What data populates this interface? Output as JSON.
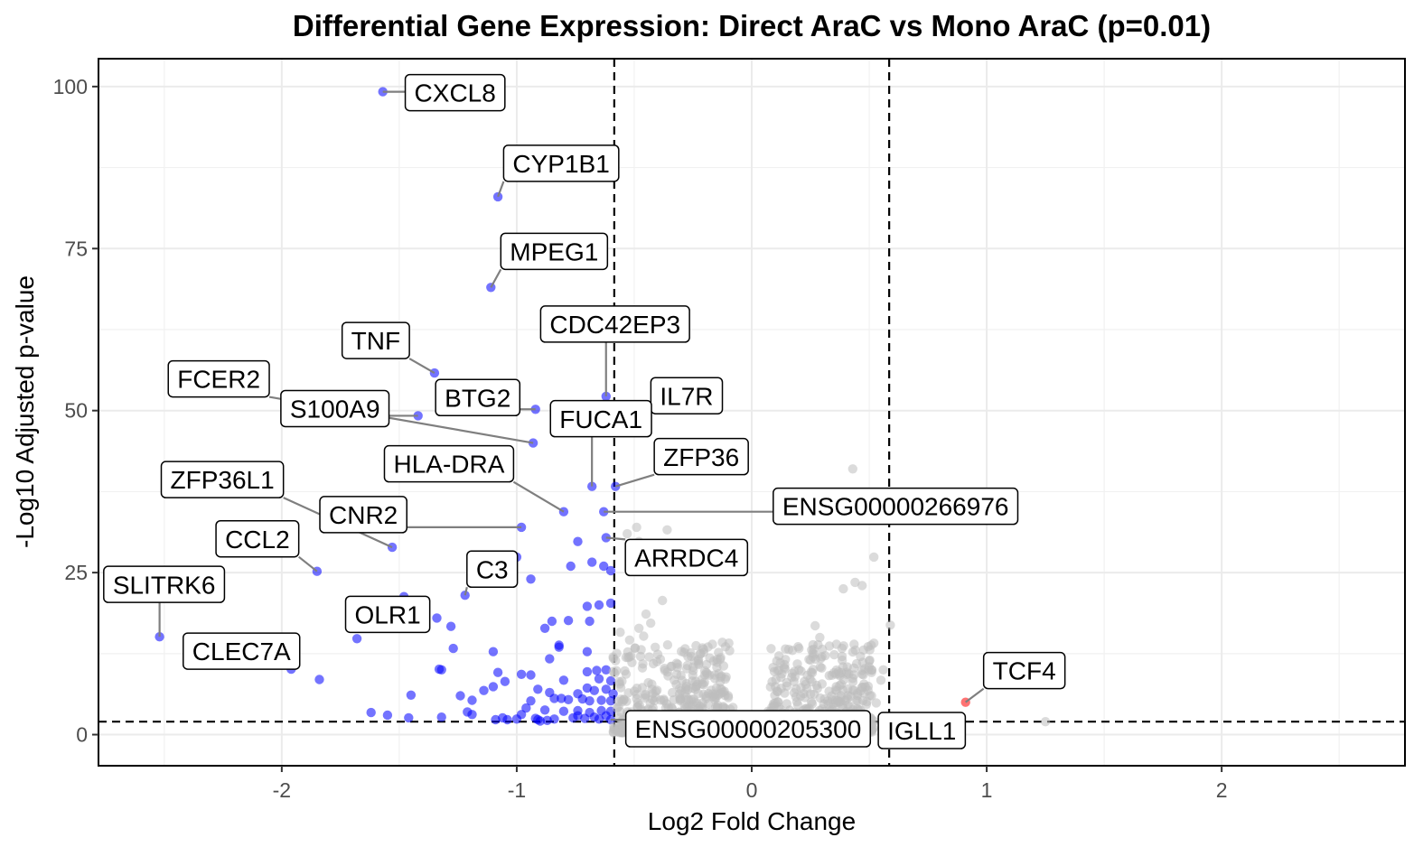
{
  "chart_data": {
    "type": "scatter",
    "title": "Differential Gene Expression: Direct AraC vs Mono AraC (p=0.01)",
    "xlabel": "Log2 Fold Change",
    "ylabel": "-Log10 Adjusted p-value",
    "xlim": [
      -2.78,
      2.78
    ],
    "ylim": [
      -4.8,
      104.3
    ],
    "x_ticks": [
      -2,
      -1,
      0,
      1,
      2
    ],
    "x_tick_labels": [
      "-2",
      "-1",
      "0",
      "1",
      "2"
    ],
    "y_ticks": [
      0,
      25,
      50,
      75,
      100
    ],
    "y_tick_labels": [
      "0",
      "25",
      "50",
      "75",
      "100"
    ],
    "grid": true,
    "legend": "none",
    "thresholds": {
      "log2fc": [
        -0.585,
        0.585
      ],
      "neg_log10_padj": 2
    },
    "colors": {
      "down": "#0000ff",
      "up": "#ff0000",
      "ns": "#bebebe"
    },
    "series": [
      {
        "name": "Down",
        "color": "#0000ff",
        "points": [
          [
            -1.57,
            99.2
          ],
          [
            -1.08,
            83.0
          ],
          [
            -1.11,
            69.0
          ],
          [
            -1.35,
            55.8
          ],
          [
            -0.62,
            52.2
          ],
          [
            -0.92,
            50.2
          ],
          [
            -0.7,
            50.9
          ],
          [
            -1.42,
            49.2
          ],
          [
            -0.93,
            45.0
          ],
          [
            -0.68,
            38.3
          ],
          [
            -0.58,
            38.3
          ],
          [
            -0.8,
            34.4
          ],
          [
            -0.63,
            34.4
          ],
          [
            -0.98,
            32.0
          ],
          [
            -1.53,
            28.9
          ],
          [
            -0.74,
            29.8
          ],
          [
            -1.0,
            27.4
          ],
          [
            -0.62,
            30.4
          ],
          [
            -0.68,
            26.6
          ],
          [
            -0.63,
            26.0
          ],
          [
            -0.6,
            25.3
          ],
          [
            -0.77,
            26.0
          ],
          [
            -1.85,
            25.2
          ],
          [
            -0.94,
            24.0
          ],
          [
            -0.85,
            17.5
          ],
          [
            -1.48,
            21.3
          ],
          [
            -1.22,
            21.5
          ],
          [
            -1.34,
            18.0
          ],
          [
            -1.28,
            16.7
          ],
          [
            -0.7,
            19.8
          ],
          [
            -0.65,
            20.0
          ],
          [
            -0.6,
            20.3
          ],
          [
            -0.78,
            17.6
          ],
          [
            -0.69,
            17.5
          ],
          [
            -0.88,
            16.4
          ],
          [
            -0.82,
            13.8
          ],
          [
            -0.82,
            13.5
          ],
          [
            -1.68,
            14.8
          ],
          [
            -2.52,
            15.1
          ],
          [
            -1.27,
            13.3
          ],
          [
            -1.1,
            12.8
          ],
          [
            -0.7,
            12.8
          ],
          [
            -0.86,
            11.7
          ],
          [
            -1.96,
            10.1
          ],
          [
            -1.33,
            10.1
          ],
          [
            -1.32,
            10.0
          ],
          [
            -1.08,
            9.6
          ],
          [
            -0.98,
            9.3
          ],
          [
            -0.94,
            9.2
          ],
          [
            -1.84,
            8.5
          ],
          [
            -1.05,
            8.2
          ],
          [
            -0.7,
            9.7
          ],
          [
            -0.66,
            9.9
          ],
          [
            -0.62,
            10.0
          ],
          [
            -0.8,
            8.4
          ],
          [
            -0.65,
            8.6
          ],
          [
            -0.6,
            8.3
          ],
          [
            -1.1,
            7.4
          ],
          [
            -1.14,
            6.8
          ],
          [
            -1.24,
            6.0
          ],
          [
            -1.19,
            5.3
          ],
          [
            -0.91,
            7.0
          ],
          [
            -0.86,
            6.5
          ],
          [
            -0.74,
            6.3
          ],
          [
            -0.7,
            7.2
          ],
          [
            -0.67,
            6.8
          ],
          [
            -0.62,
            7.0
          ],
          [
            -0.59,
            6.3
          ],
          [
            -1.45,
            6.1
          ],
          [
            -0.94,
            5.2
          ],
          [
            -0.84,
            5.6
          ],
          [
            -0.81,
            5.6
          ],
          [
            -0.78,
            5.4
          ],
          [
            -0.72,
            5.5
          ],
          [
            -0.69,
            5.2
          ],
          [
            -0.64,
            5.3
          ],
          [
            -0.6,
            5.2
          ],
          [
            -0.96,
            4.1
          ],
          [
            -0.88,
            3.8
          ],
          [
            -0.8,
            3.6
          ],
          [
            -0.74,
            3.7
          ],
          [
            -0.69,
            3.4
          ],
          [
            -0.64,
            3.7
          ],
          [
            -0.6,
            3.6
          ],
          [
            -1.62,
            3.4
          ],
          [
            -1.55,
            3.0
          ],
          [
            -1.46,
            2.6
          ],
          [
            -1.32,
            2.7
          ],
          [
            -1.21,
            3.5
          ],
          [
            -1.19,
            3.1
          ],
          [
            -1.06,
            2.6
          ],
          [
            -1.04,
            2.3
          ],
          [
            -1.09,
            2.3
          ],
          [
            -1.0,
            2.4
          ],
          [
            -0.98,
            3.1
          ],
          [
            -0.92,
            2.5
          ],
          [
            -0.91,
            2.3
          ],
          [
            -0.9,
            2.1
          ],
          [
            -0.87,
            2.2
          ],
          [
            -0.84,
            2.4
          ],
          [
            -0.76,
            2.6
          ],
          [
            -0.74,
            2.9
          ],
          [
            -0.71,
            2.5
          ],
          [
            -0.67,
            2.7
          ],
          [
            -0.65,
            2.4
          ],
          [
            -0.62,
            2.9
          ],
          [
            -0.6,
            2.3
          ]
        ]
      },
      {
        "name": "Up",
        "color": "#ff0000",
        "points": [
          [
            0.91,
            5.0
          ],
          [
            0.62,
            2.3
          ]
        ]
      },
      {
        "name": "NS",
        "color": "#bebebe",
        "points": [
          [
            0.43,
            41.0
          ],
          [
            -0.36,
            31.6
          ],
          [
            -0.49,
            32.0
          ],
          [
            -0.53,
            31.0
          ],
          [
            -0.48,
            29.8
          ],
          [
            -0.44,
            29.2
          ],
          [
            -0.47,
            28.0
          ],
          [
            0.52,
            27.4
          ],
          [
            0.44,
            23.5
          ],
          [
            0.47,
            23.0
          ],
          [
            0.39,
            22.5
          ],
          [
            -0.38,
            20.7
          ],
          [
            0.59,
            16.9
          ],
          [
            -0.56,
            15.8
          ],
          [
            -0.46,
            15.2
          ],
          [
            -0.52,
            14.6
          ],
          [
            -0.45,
            18.6
          ],
          [
            -0.43,
            17.2
          ],
          [
            -0.48,
            16.4
          ],
          [
            0.47,
            9.9
          ],
          [
            0.51,
            9.6
          ],
          [
            0.56,
            10.0
          ],
          [
            0.55,
            8.4
          ],
          [
            0.49,
            5.1
          ],
          [
            0.53,
            4.9
          ],
          [
            0.52,
            2.1
          ],
          [
            0.5,
            2.2
          ],
          [
            1.25,
            2.0
          ],
          [
            -0.32,
            11.0
          ],
          [
            -0.26,
            12.6
          ],
          [
            -0.2,
            9.2
          ],
          [
            -0.15,
            7.2
          ],
          [
            -0.1,
            6.0
          ],
          [
            -0.08,
            4.2
          ],
          [
            -0.05,
            3.0
          ],
          [
            -0.4,
            12.4
          ],
          [
            -0.37,
            9.9
          ],
          [
            -0.33,
            8.4
          ],
          [
            -0.3,
            6.8
          ],
          [
            -0.27,
            5.4
          ],
          [
            -0.22,
            4.4
          ],
          [
            -0.18,
            3.4
          ],
          [
            -0.44,
            8.0
          ],
          [
            -0.5,
            6.7
          ],
          [
            -0.55,
            5.1
          ],
          [
            -0.42,
            4.1
          ],
          [
            -0.35,
            3.0
          ],
          [
            -0.28,
            2.4
          ],
          [
            0.21,
            9.8
          ],
          [
            0.26,
            12.0
          ],
          [
            0.29,
            15.0
          ],
          [
            0.27,
            16.8
          ],
          [
            0.25,
            11.5
          ],
          [
            0.18,
            8.2
          ],
          [
            0.14,
            6.4
          ],
          [
            0.1,
            4.9
          ],
          [
            0.07,
            3.6
          ],
          [
            0.04,
            2.5
          ],
          [
            0.33,
            9.1
          ],
          [
            0.36,
            7.4
          ],
          [
            0.38,
            6.0
          ],
          [
            0.41,
            4.6
          ],
          [
            0.44,
            3.4
          ],
          [
            0.31,
            5.5
          ],
          [
            0.23,
            4.0
          ],
          [
            0.16,
            3.0
          ]
        ]
      }
    ],
    "labels": [
      {
        "text": "CXCL8",
        "x": -1.57,
        "y": 99.2
      },
      {
        "text": "CYP1B1",
        "x": -1.08,
        "y": 83.0
      },
      {
        "text": "MPEG1",
        "x": -1.11,
        "y": 69.0
      },
      {
        "text": "FCER2",
        "x": -0.93,
        "y": 45.0
      },
      {
        "text": "TNF",
        "x": -1.35,
        "y": 55.8
      },
      {
        "text": "CDC42EP3",
        "x": -0.62,
        "y": 52.2
      },
      {
        "text": "S100A9",
        "x": -1.42,
        "y": 49.2
      },
      {
        "text": "BTG2",
        "x": -0.92,
        "y": 50.2
      },
      {
        "text": "IL7R",
        "x": -0.7,
        "y": 50.9
      },
      {
        "text": "ZFP36L1",
        "x": -1.53,
        "y": 28.9
      },
      {
        "text": "HLA-DRA",
        "x": -0.8,
        "y": 34.4
      },
      {
        "text": "FUCA1",
        "x": -0.68,
        "y": 38.3
      },
      {
        "text": "ZFP36",
        "x": -0.58,
        "y": 38.3
      },
      {
        "text": "ENSG00000266976",
        "x": -0.63,
        "y": 34.4
      },
      {
        "text": "CNR2",
        "x": -0.98,
        "y": 32.0
      },
      {
        "text": "CCL2",
        "x": -1.85,
        "y": 25.2
      },
      {
        "text": "ARRDC4",
        "x": -0.62,
        "y": 30.4
      },
      {
        "text": "C3",
        "x": -1.22,
        "y": 21.5
      },
      {
        "text": "SLITRK6",
        "x": -2.52,
        "y": 15.1
      },
      {
        "text": "OLR1",
        "x": -1.68,
        "y": 14.8
      },
      {
        "text": "CLEC7A",
        "x": -1.96,
        "y": 10.1
      },
      {
        "text": "TCF4",
        "x": 0.91,
        "y": 5.0
      },
      {
        "text": "ENSG00000205300",
        "x": -0.6,
        "y": 2.3
      },
      {
        "text": "IGLL1",
        "x": 0.62,
        "y": 2.3
      }
    ]
  }
}
